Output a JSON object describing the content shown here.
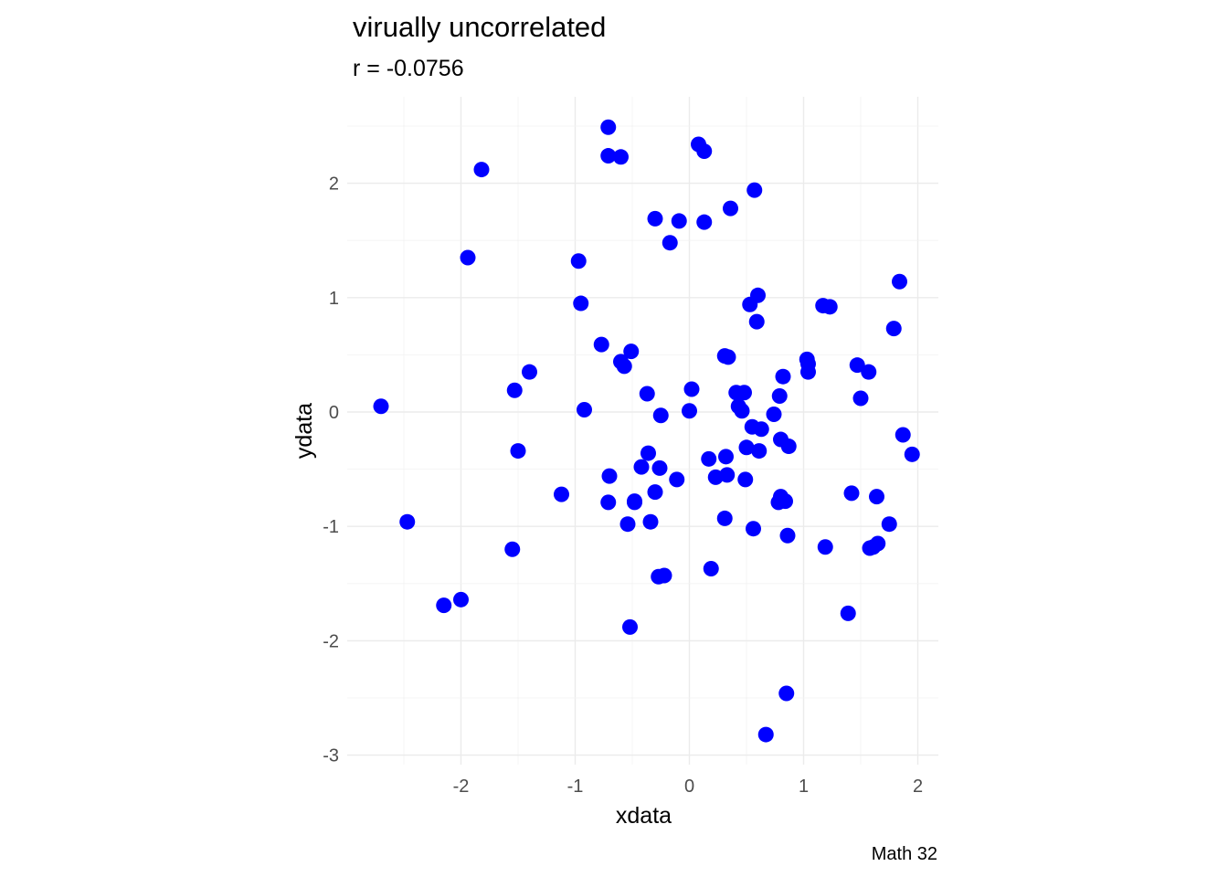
{
  "chart_data": {
    "type": "scatter",
    "title": "virually uncorrelated",
    "subtitle": "r = -0.0756",
    "xlabel": "xdata",
    "ylabel": "ydata",
    "caption": "Math 32",
    "xlim": [
      -3.0,
      2.2
    ],
    "ylim": [
      -3.05,
      2.6
    ],
    "xticks": [
      -2,
      -1,
      0,
      1,
      2
    ],
    "xtick_labels": [
      "-2",
      "-1",
      "0",
      "1",
      "2"
    ],
    "yticks": [
      -3,
      -2,
      -1,
      0,
      1,
      2
    ],
    "ytick_labels": [
      "-3",
      "-2",
      "-1",
      "0",
      "1",
      "2"
    ],
    "grid": true,
    "point_color": "#0000ff",
    "points": [
      [
        -2.7,
        0.05
      ],
      [
        -2.47,
        -0.96
      ],
      [
        -2.15,
        -1.69
      ],
      [
        -2.0,
        -1.64
      ],
      [
        -1.94,
        1.35
      ],
      [
        -1.82,
        2.12
      ],
      [
        -1.55,
        -1.2
      ],
      [
        -1.53,
        0.19
      ],
      [
        -1.5,
        -0.34
      ],
      [
        -1.4,
        0.35
      ],
      [
        -1.12,
        -0.72
      ],
      [
        -0.97,
        1.32
      ],
      [
        -0.95,
        0.95
      ],
      [
        -0.92,
        0.02
      ],
      [
        -0.77,
        0.59
      ],
      [
        -0.71,
        2.49
      ],
      [
        -0.71,
        2.24
      ],
      [
        -0.7,
        -0.56
      ],
      [
        -0.71,
        -0.79
      ],
      [
        -0.6,
        2.23
      ],
      [
        -0.6,
        0.44
      ],
      [
        -0.57,
        0.4
      ],
      [
        -0.54,
        -0.98
      ],
      [
        -0.52,
        -1.88
      ],
      [
        -0.51,
        0.53
      ],
      [
        -0.48,
        -0.78
      ],
      [
        -0.48,
        -0.79
      ],
      [
        -0.42,
        -0.48
      ],
      [
        -0.37,
        0.16
      ],
      [
        -0.36,
        -0.36
      ],
      [
        -0.34,
        -0.96
      ],
      [
        -0.3,
        1.69
      ],
      [
        -0.3,
        -0.7
      ],
      [
        -0.27,
        -1.44
      ],
      [
        -0.26,
        -0.49
      ],
      [
        -0.25,
        -0.03
      ],
      [
        -0.22,
        -1.43
      ],
      [
        -0.17,
        1.48
      ],
      [
        -0.11,
        -0.59
      ],
      [
        -0.09,
        1.67
      ],
      [
        0.0,
        0.01
      ],
      [
        0.02,
        0.2
      ],
      [
        0.08,
        2.34
      ],
      [
        0.13,
        2.28
      ],
      [
        0.13,
        1.66
      ],
      [
        0.17,
        -0.41
      ],
      [
        0.19,
        -1.37
      ],
      [
        0.23,
        -0.57
      ],
      [
        0.31,
        0.49
      ],
      [
        0.31,
        -0.93
      ],
      [
        0.32,
        -0.39
      ],
      [
        0.33,
        -0.55
      ],
      [
        0.34,
        0.48
      ],
      [
        0.36,
        1.78
      ],
      [
        0.41,
        0.17
      ],
      [
        0.43,
        0.05
      ],
      [
        0.46,
        0.01
      ],
      [
        0.48,
        0.17
      ],
      [
        0.49,
        -0.59
      ],
      [
        0.5,
        -0.31
      ],
      [
        0.53,
        0.94
      ],
      [
        0.55,
        -0.13
      ],
      [
        0.56,
        -1.02
      ],
      [
        0.57,
        1.94
      ],
      [
        0.59,
        0.79
      ],
      [
        0.6,
        1.02
      ],
      [
        0.61,
        -0.34
      ],
      [
        0.63,
        -0.15
      ],
      [
        0.67,
        -2.82
      ],
      [
        0.74,
        -0.02
      ],
      [
        0.78,
        -0.79
      ],
      [
        0.79,
        0.14
      ],
      [
        0.8,
        -0.24
      ],
      [
        0.8,
        -0.74
      ],
      [
        0.82,
        0.31
      ],
      [
        0.84,
        -0.78
      ],
      [
        0.85,
        -2.46
      ],
      [
        0.86,
        -1.08
      ],
      [
        0.87,
        -0.3
      ],
      [
        1.03,
        0.46
      ],
      [
        1.04,
        0.35
      ],
      [
        1.04,
        0.42
      ],
      [
        1.17,
        0.93
      ],
      [
        1.19,
        -1.18
      ],
      [
        1.23,
        0.92
      ],
      [
        1.39,
        -1.76
      ],
      [
        1.42,
        -0.71
      ],
      [
        1.47,
        0.41
      ],
      [
        1.5,
        0.12
      ],
      [
        1.57,
        0.35
      ],
      [
        1.58,
        -1.19
      ],
      [
        1.61,
        -1.18
      ],
      [
        1.64,
        -0.74
      ],
      [
        1.65,
        -1.15
      ],
      [
        1.75,
        -0.98
      ],
      [
        1.79,
        0.73
      ],
      [
        1.84,
        1.14
      ],
      [
        1.87,
        -0.2
      ],
      [
        1.95,
        -0.37
      ]
    ]
  }
}
